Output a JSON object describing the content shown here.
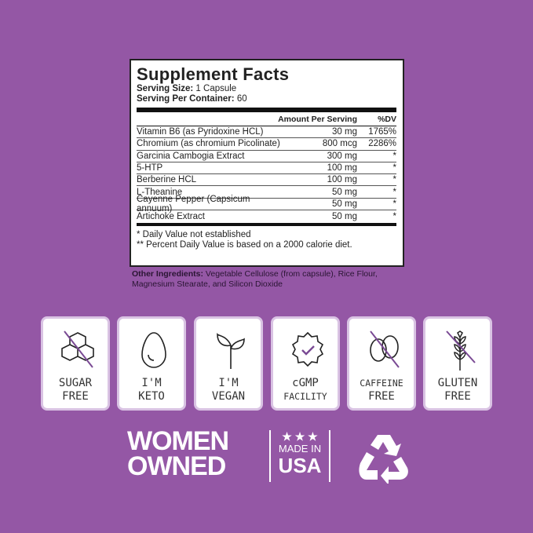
{
  "facts": {
    "title": "Supplement Facts",
    "serving_size_label": "Serving Size:",
    "serving_size": "1 Capsule",
    "servings_label": "Serving Per Container:",
    "servings": "60",
    "header": {
      "amount": "Amount Per Serving",
      "dv": "%DV"
    },
    "rows": [
      {
        "name": "Vitamin B6 (as Pyridoxine HCL)",
        "amount": "30 mg",
        "dv": "1765%"
      },
      {
        "name": "Chromium (as chromium Picolinate)",
        "amount": "800 mcg",
        "dv": "2286%"
      },
      {
        "name": "Garcinia Cambogia Extract",
        "amount": "300 mg",
        "dv": "*"
      },
      {
        "name": "5-HTP",
        "amount": "100 mg",
        "dv": "*"
      },
      {
        "name": "Berberine HCL",
        "amount": "100 mg",
        "dv": "*"
      },
      {
        "name": "L-Theanine",
        "amount": "50 mg",
        "dv": "*"
      },
      {
        "name": "Cayenne Pepper (Capsicum annuum)",
        "amount": "50 mg",
        "dv": "*"
      },
      {
        "name": "Artichoke Extract",
        "amount": "50 mg",
        "dv": "*"
      }
    ],
    "footnote1": "* Daily Value not established",
    "footnote2": "** Percent Daily Value is based on a 2000 calorie diet."
  },
  "other": {
    "label": "Other Ingredients:",
    "text": " Vegetable Cellulose (from capsule), Rice Flour, Magnesium Stearate, and Silicon Dioxide"
  },
  "badges": [
    {
      "icon": "sugar-cubes-crossed",
      "l1": "SUGAR",
      "l2": "FREE"
    },
    {
      "icon": "egg",
      "l1": "I'M",
      "l2": "KETO"
    },
    {
      "icon": "sprout",
      "l1": "I'M",
      "l2": "VEGAN"
    },
    {
      "icon": "check-seal",
      "l1": "cGMP",
      "l2": "FACILITY"
    },
    {
      "icon": "coffee-bean-crossed",
      "l1": "CAFFEINE",
      "l2": "FREE"
    },
    {
      "icon": "wheat-crossed",
      "l1": "GLUTEN",
      "l2": "FREE"
    }
  ],
  "logos": {
    "women": "WOMEN OWNED",
    "usa": "MADE IN USA",
    "usa_l1": "MADE IN",
    "usa_l2": "USA",
    "recycle": "recycle-icon"
  },
  "colors": {
    "background": "#9457a5",
    "accent": "#7a4a94"
  }
}
